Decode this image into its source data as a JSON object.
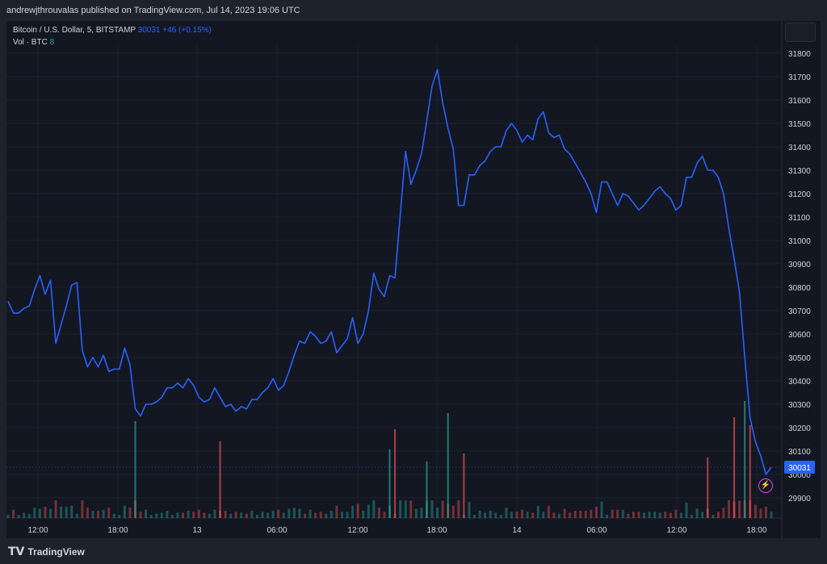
{
  "header": {
    "published": "andrewjthrouvalas published on TradingView.com, Jul 14, 2023 19:06 UTC"
  },
  "legend": {
    "symbol": "Bitcoin / U.S. Dollar, 5, BITSTAMP",
    "last_price": "30031",
    "change": "+46 (+0.15%)",
    "volume_label": "Vol · BTC",
    "volume_value": "8"
  },
  "footer": {
    "brand": "TradingView"
  },
  "colors": {
    "line": "#2962ff",
    "background": "#131722",
    "vol_up": "#26a69a",
    "vol_down": "#ef5350"
  },
  "chart_data": {
    "type": "line",
    "title": "Bitcoin / U.S. Dollar, 5, BITSTAMP",
    "ylim": [
      29820,
      31900
    ],
    "y_ticks": [
      29900,
      30000,
      30100,
      30200,
      30300,
      30400,
      30500,
      30600,
      30700,
      30800,
      30900,
      31000,
      31100,
      31200,
      31300,
      31400,
      31500,
      31600,
      31700,
      31800
    ],
    "x_ticks": [
      "12:00",
      "18:00",
      "13",
      "06:00",
      "12:00",
      "18:00",
      "14",
      "06:00",
      "12:00",
      "18:00"
    ],
    "price_label": "30031",
    "series": [
      {
        "values": [
          30740,
          30690,
          30690,
          30710,
          30720,
          30790,
          30850,
          30770,
          30830,
          30560,
          30640,
          30720,
          30810,
          30820,
          30530,
          30460,
          30500,
          30460,
          30510,
          30440,
          30450,
          30450,
          30540,
          30470,
          30280,
          30250,
          30300,
          30300,
          30310,
          30330,
          30370,
          30370,
          30390,
          30370,
          30410,
          30380,
          30330,
          30310,
          30320,
          30370,
          30330,
          30290,
          30300,
          30270,
          30290,
          30280,
          30320,
          30320,
          30350,
          30370,
          30410,
          30360,
          30380,
          30440,
          30510,
          30570,
          30560,
          30610,
          30590,
          30560,
          30570,
          30610,
          30520,
          30550,
          30580,
          30670,
          30560,
          30600,
          30700,
          30860,
          30790,
          30760,
          30850,
          30840,
          31110,
          31380,
          31240,
          31300,
          31370,
          31510,
          31660,
          31730,
          31590,
          31480,
          31390,
          31150,
          31150,
          31280,
          31280,
          31320,
          31340,
          31380,
          31400,
          31400,
          31470,
          31500,
          31470,
          31420,
          31450,
          31430,
          31520,
          31550,
          31460,
          31440,
          31450,
          31390,
          31370,
          31330,
          31290,
          31250,
          31200,
          31120,
          31250,
          31250,
          31200,
          31150,
          31200,
          31190,
          31160,
          31130,
          31150,
          31180,
          31210,
          31230,
          31200,
          31180,
          31130,
          31150,
          31270,
          31270,
          31330,
          31360,
          31300,
          31300,
          31270,
          31200,
          31050,
          30920,
          30780,
          30500,
          30240,
          30140,
          30080,
          30000,
          30031
        ]
      }
    ],
    "volume": [
      {
        "i": 24,
        "v": 120,
        "up": true
      },
      {
        "i": 40,
        "v": 95,
        "up": false
      },
      {
        "i": 72,
        "v": 85,
        "up": true
      },
      {
        "i": 73,
        "v": 110,
        "up": false
      },
      {
        "i": 79,
        "v": 70,
        "up": true
      },
      {
        "i": 83,
        "v": 130,
        "up": true
      },
      {
        "i": 86,
        "v": 80,
        "up": false
      },
      {
        "i": 132,
        "v": 75,
        "up": false
      },
      {
        "i": 137,
        "v": 125,
        "up": false
      },
      {
        "i": 139,
        "v": 145,
        "up": true
      },
      {
        "i": 140,
        "v": 115,
        "up": false
      }
    ]
  }
}
